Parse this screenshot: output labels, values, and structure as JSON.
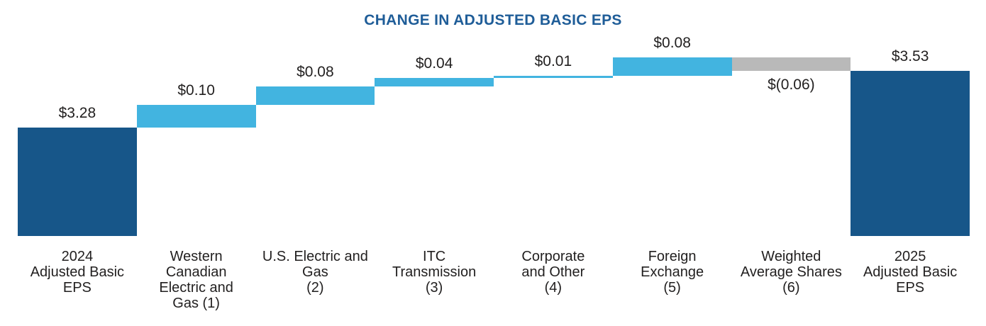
{
  "colors": {
    "total_bar": "#175689",
    "increase_bar": "#42B4E0",
    "decrease_bar": "#B9B9B9",
    "title_text": "#1F5D98",
    "label_text": "#211F1F"
  },
  "chart_data": {
    "type": "bar",
    "subtype": "waterfall",
    "title": "CHANGE IN ADJUSTED BASIC EPS",
    "xlabel": "",
    "ylabel": "",
    "y_axis": {
      "min": 2.8,
      "max": 3.72,
      "visible": false
    },
    "grid": false,
    "legend": false,
    "bars": [
      {
        "category": "2024 Adjusted Basic EPS",
        "category_lines": [
          "2024",
          "Adjusted Basic",
          "EPS"
        ],
        "value": 3.28,
        "label": "$3.28",
        "kind": "total"
      },
      {
        "category": "Western Canadian Electric and Gas (1)",
        "category_lines": [
          "Western",
          "Canadian",
          "Electric and",
          "Gas (1)"
        ],
        "value": 0.1,
        "label": "$0.10",
        "kind": "increase"
      },
      {
        "category": "U.S. Electric and Gas (2)",
        "category_lines": [
          "U.S. Electric and",
          "Gas",
          "(2)"
        ],
        "value": 0.08,
        "label": "$0.08",
        "kind": "increase"
      },
      {
        "category": "ITC Transmission (3)",
        "category_lines": [
          "ITC",
          "Transmission",
          "(3)"
        ],
        "value": 0.04,
        "label": "$0.04",
        "kind": "increase"
      },
      {
        "category": "Corporate and Other (4)",
        "category_lines": [
          "Corporate",
          "and Other",
          "(4)"
        ],
        "value": 0.01,
        "label": "$0.01",
        "kind": "increase"
      },
      {
        "category": "Foreign Exchange (5)",
        "category_lines": [
          "Foreign",
          "Exchange",
          "(5)"
        ],
        "value": 0.08,
        "label": "$0.08",
        "kind": "increase"
      },
      {
        "category": "Weighted Average Shares (6)",
        "category_lines": [
          "Weighted",
          "Average Shares",
          "(6)"
        ],
        "value": -0.06,
        "label": "$(0.06)",
        "kind": "decrease"
      },
      {
        "category": "2025 Adjusted Basic EPS",
        "category_lines": [
          "2025",
          "Adjusted Basic",
          "EPS"
        ],
        "value": 3.53,
        "label": "$3.53",
        "kind": "total"
      }
    ]
  }
}
